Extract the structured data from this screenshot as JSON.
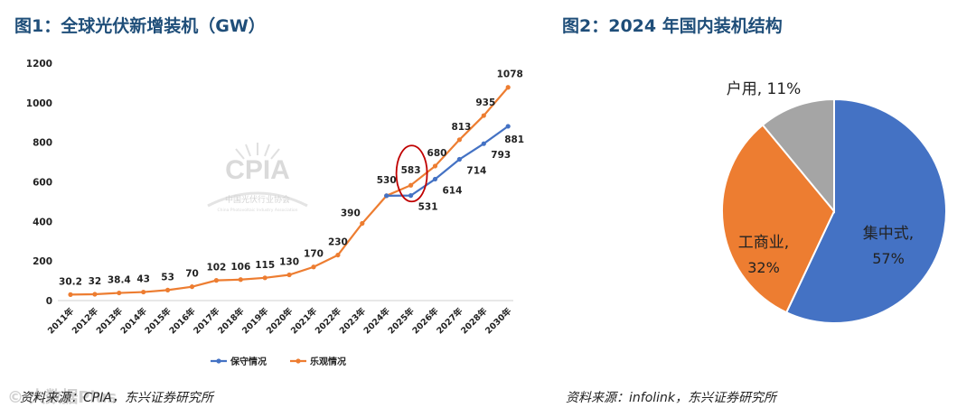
{
  "figure1": {
    "title": "图1：全球光伏新增装机（GW）",
    "source": "资料来源：CPIA，东兴证券研究所",
    "watermark": {
      "logo_text": "CPIA",
      "org_cn": "中国光伏行业协会",
      "org_en": "China Photovoltaic Industry Association"
    }
  },
  "figure2": {
    "title": "图2：2024 年国内装机结构",
    "source": "资料来源：infolink，东兴证券研究所"
  },
  "corner_watermark": "© 大数据Plus",
  "colors": {
    "blue": "#4472c4",
    "orange": "#ed7d31",
    "gray": "#a5a5a5",
    "circle": "#c00000",
    "title": "#1f4e79"
  },
  "chart_data": [
    {
      "type": "line",
      "title": "全球光伏新增装机（GW）",
      "categories": [
        "2011年",
        "2012年",
        "2013年",
        "2014年",
        "2015年",
        "2016年",
        "2017年",
        "2018年",
        "2019年",
        "2020年",
        "2021年",
        "2022年",
        "2023年",
        "2024年",
        "2025年",
        "2026年",
        "2027年",
        "2028年",
        "2030年"
      ],
      "ylim": [
        0,
        1200
      ],
      "yticks": [
        0,
        200,
        400,
        600,
        800,
        1000,
        1200
      ],
      "legend_position": "bottom",
      "grid": false,
      "series": [
        {
          "name": "保守情况",
          "color": "#4472c4",
          "values": [
            null,
            null,
            null,
            null,
            null,
            null,
            null,
            null,
            null,
            null,
            null,
            null,
            null,
            530,
            531,
            614,
            714,
            793,
            881
          ],
          "labels": [
            null,
            null,
            null,
            null,
            null,
            null,
            null,
            null,
            null,
            null,
            null,
            null,
            null,
            null,
            "531",
            "614",
            "714",
            "793",
            "881"
          ]
        },
        {
          "name": "乐观情况",
          "color": "#ed7d31",
          "values": [
            30.2,
            32,
            38.4,
            43,
            53,
            70,
            102,
            106,
            115,
            130,
            170,
            230,
            390,
            530,
            583,
            680,
            813,
            935,
            1078
          ],
          "labels": [
            "30.2",
            "32",
            "38.4",
            "43",
            "53",
            "70",
            "102",
            "106",
            "115",
            "130",
            "170",
            "230",
            "390",
            "530",
            "583",
            "680",
            "813",
            "935",
            "1078"
          ]
        }
      ],
      "annotation": {
        "type": "circle",
        "category": "2025年",
        "value": 583
      }
    },
    {
      "type": "pie",
      "title": "2024 年国内装机结构",
      "slices": [
        {
          "label": "集中式",
          "value": 57,
          "pct": "57%",
          "color": "#4472c4"
        },
        {
          "label": "工商业",
          "value": 32,
          "pct": "32%",
          "color": "#ed7d31"
        },
        {
          "label": "户用",
          "value": 11,
          "pct": "11%",
          "color": "#a5a5a5"
        }
      ]
    }
  ]
}
